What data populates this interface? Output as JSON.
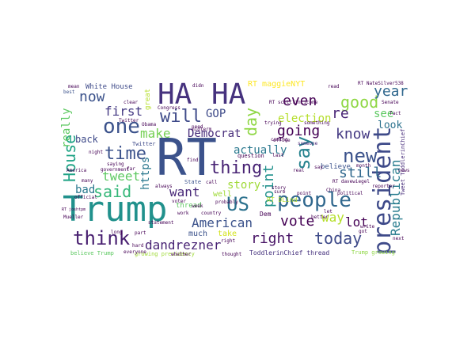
{
  "words": [
    {
      "text": "RT",
      "color": "#3b528b",
      "vertical": false
    },
    {
      "text": "Trump",
      "color": "#21918c",
      "vertical": false
    },
    {
      "text": "HA",
      "color": "#46327e",
      "vertical": false
    },
    {
      "text": "HA",
      "color": "#46327e",
      "vertical": false
    },
    {
      "text": "president",
      "color": "#3e4a89",
      "vertical": true
    },
    {
      "text": "people",
      "color": "#31688e",
      "vertical": false
    },
    {
      "text": "one",
      "color": "#3b528b",
      "vertical": false
    },
    {
      "text": "think",
      "color": "#481f70",
      "vertical": false
    },
    {
      "text": "new",
      "color": "#3b528b",
      "vertical": false
    },
    {
      "text": "US",
      "color": "#2c728e",
      "vertical": false
    },
    {
      "text": "say",
      "color": "#26828e",
      "vertical": true
    },
    {
      "text": "thing",
      "color": "#482374",
      "vertical": false
    },
    {
      "text": "House",
      "color": "#20a386",
      "vertical": true
    },
    {
      "text": "time",
      "color": "#3b528b",
      "vertical": false
    },
    {
      "text": "said",
      "color": "#35b779",
      "vertical": false
    },
    {
      "text": "today",
      "color": "#3e4a89",
      "vertical": false
    },
    {
      "text": "will",
      "color": "#3e4a89",
      "vertical": false
    },
    {
      "text": "good",
      "color": "#8fd744",
      "vertical": false
    },
    {
      "text": "day",
      "color": "#8fd744",
      "vertical": true
    },
    {
      "text": "vote",
      "color": "#440154",
      "vertical": false
    },
    {
      "text": "year",
      "color": "#31688e",
      "vertical": false
    },
    {
      "text": "know",
      "color": "#443983",
      "vertical": false
    },
    {
      "text": "make",
      "color": "#75d054",
      "vertical": false
    },
    {
      "text": "now",
      "color": "#3b528b",
      "vertical": false
    },
    {
      "text": "first",
      "color": "#443983",
      "vertical": false
    },
    {
      "text": "tweet",
      "color": "#5ec962",
      "vertical": false
    },
    {
      "text": "still",
      "color": "#31688e",
      "vertical": false
    },
    {
      "text": "even",
      "color": "#440154",
      "vertical": false
    },
    {
      "text": "going",
      "color": "#440154",
      "vertical": false
    },
    {
      "text": "right",
      "color": "#471365",
      "vertical": false
    },
    {
      "text": "want",
      "color": "#482878",
      "vertical": false
    },
    {
      "text": "American",
      "color": "#3b528b",
      "vertical": false
    },
    {
      "text": "dandrezner",
      "color": "#482374",
      "vertical": false
    },
    {
      "text": "Republican",
      "color": "#287c8e",
      "vertical": true
    },
    {
      "text": "point",
      "color": "#21918c",
      "vertical": true
    },
    {
      "text": "way",
      "color": "#b5de2b",
      "vertical": false
    },
    {
      "text": "lot",
      "color": "#440154",
      "vertical": false
    },
    {
      "text": "re",
      "color": "#482475",
      "vertical": false
    },
    {
      "text": "see",
      "color": "#5ec962",
      "vertical": false
    },
    {
      "text": "election",
      "color": "#b5de2b",
      "vertical": false
    },
    {
      "text": "actually",
      "color": "#2a788e",
      "vertical": false
    },
    {
      "text": "Democrat",
      "color": "#472d7b",
      "vertical": false
    },
    {
      "text": "GOP",
      "color": "#3e4a89",
      "vertical": false
    },
    {
      "text": "bad",
      "color": "#2a788e",
      "vertical": false
    },
    {
      "text": "back",
      "color": "#3e4a89",
      "vertical": false
    },
    {
      "text": "really",
      "color": "#5ec962",
      "vertical": true
    },
    {
      "text": "story",
      "color": "#a0da39",
      "vertical": false
    },
    {
      "text": "look",
      "color": "#2c728e",
      "vertical": false
    },
    {
      "text": "https",
      "color": "#2a788e",
      "vertical": true
    },
    {
      "text": "RT maggieNYT",
      "color": "#fde725",
      "vertical": false
    },
    {
      "text": "White House",
      "color": "#3e4a89",
      "vertical": false
    },
    {
      "text": "ToddlerinChief thread",
      "color": "#46327e",
      "vertical": false
    },
    {
      "text": "thread",
      "color": "#5ec962",
      "vertical": false
    },
    {
      "text": "much",
      "color": "#3b528b",
      "vertical": false
    },
    {
      "text": "take",
      "color": "#d2e21b",
      "vertical": false
    },
    {
      "text": "RT DLind",
      "color": "#b5de2b",
      "vertical": false
    },
    {
      "text": "believe Trump",
      "color": "#5ec962",
      "vertical": false
    },
    {
      "text": "Trump growing",
      "color": "#8fd744",
      "vertical": false
    },
    {
      "text": "growing presidency",
      "color": "#a0da39",
      "vertical": false
    },
    {
      "text": "Tweet ToddlerinChief",
      "color": "#472d7b",
      "vertical": true
    },
    {
      "text": "Dem",
      "color": "#440154",
      "vertical": false
    },
    {
      "text": "believe",
      "color": "#3b528b",
      "vertical": false
    },
    {
      "text": "Twitter",
      "color": "#3e4a89",
      "vertical": false
    },
    {
      "text": "mean",
      "color": "#440154",
      "vertical": false
    },
    {
      "text": "best",
      "color": "#3b528b",
      "vertical": false
    },
    {
      "text": "need",
      "color": "#440154",
      "vertical": false
    },
    {
      "text": "question",
      "color": "#440154",
      "vertical": false
    },
    {
      "text": "last",
      "color": "#440154",
      "vertical": false
    },
    {
      "text": "something",
      "color": "#440154",
      "vertical": false
    },
    {
      "text": "someone",
      "color": "#482878",
      "vertical": false
    },
    {
      "text": "trying",
      "color": "#440154",
      "vertical": false
    },
    {
      "text": "coming",
      "color": "#440154",
      "vertical": false
    },
    {
      "text": "Senate",
      "color": "#440154",
      "vertical": false
    },
    {
      "text": "Congress",
      "color": "#440154",
      "vertical": false
    },
    {
      "text": "clear",
      "color": "#440154",
      "vertical": false
    },
    {
      "text": "China",
      "color": "#440154",
      "vertical": false
    },
    {
      "text": "call",
      "color": "#440154",
      "vertical": false
    },
    {
      "text": "State",
      "color": "#3b528b",
      "vertical": false
    },
    {
      "text": "well",
      "color": "#a0da39",
      "vertical": false
    },
    {
      "text": "work",
      "color": "#440154",
      "vertical": false
    },
    {
      "text": "week",
      "color": "#440154",
      "vertical": false
    },
    {
      "text": "country",
      "color": "#440154",
      "vertical": false
    },
    {
      "text": "part",
      "color": "#440154",
      "vertical": false
    },
    {
      "text": "long",
      "color": "#440154",
      "vertical": false
    },
    {
      "text": "hard",
      "color": "#440154",
      "vertical": false
    },
    {
      "text": "got",
      "color": "#440154",
      "vertical": false
    },
    {
      "text": "great",
      "color": "#b5de2b",
      "vertical": true
    },
    {
      "text": "official",
      "color": "#440154",
      "vertical": false
    },
    {
      "text": "political",
      "color": "#440154",
      "vertical": false
    },
    {
      "text": "point",
      "color": "#440154",
      "vertical": false
    },
    {
      "text": "read",
      "color": "#440154",
      "vertical": false
    },
    {
      "text": "story",
      "color": "#440154",
      "vertical": false
    },
    {
      "text": "RT NateSilver538",
      "color": "#440154",
      "vertical": false
    },
    {
      "text": "RT scottlincicome",
      "color": "#440154",
      "vertical": false
    },
    {
      "text": "Obama",
      "color": "#440154",
      "vertical": false
    },
    {
      "text": "night",
      "color": "#440154",
      "vertical": false
    },
    {
      "text": "let",
      "color": "#440154",
      "vertical": false
    },
    {
      "text": "month",
      "color": "#440154",
      "vertical": false
    },
    {
      "text": "better",
      "color": "#440154",
      "vertical": false
    },
    {
      "text": "thought",
      "color": "#440154",
      "vertical": false
    },
    {
      "text": "Twitter",
      "color": "#440154",
      "vertical": false
    },
    {
      "text": "statement",
      "color": "#440154",
      "vertical": false
    },
    {
      "text": "everyone",
      "color": "#440154",
      "vertical": false
    },
    {
      "text": "right",
      "color": "#440154",
      "vertical": false
    },
    {
      "text": "reporter",
      "color": "#440154",
      "vertical": false
    },
    {
      "text": "RT davewiegel",
      "color": "#440154",
      "vertical": false
    },
    {
      "text": "real",
      "color": "#440154",
      "vertical": false
    },
    {
      "text": "voter",
      "color": "#440154",
      "vertical": false
    },
    {
      "text": "midterm",
      "color": "#440154",
      "vertical": false
    },
    {
      "text": "far",
      "color": "#440154",
      "vertical": false
    },
    {
      "text": "saying",
      "color": "#440154",
      "vertical": false
    },
    {
      "text": "government",
      "color": "#440154",
      "vertical": false
    },
    {
      "text": "America",
      "color": "#440154",
      "vertical": false
    },
    {
      "text": "find",
      "color": "#440154",
      "vertical": false
    },
    {
      "text": "RT joshtpm",
      "color": "#440154",
      "vertical": false
    },
    {
      "text": "probably",
      "color": "#440154",
      "vertical": false
    },
    {
      "text": "always",
      "color": "#440154",
      "vertical": false
    },
    {
      "text": "many",
      "color": "#440154",
      "vertical": false
    },
    {
      "text": "sure",
      "color": "#440154",
      "vertical": false
    },
    {
      "text": "office",
      "color": "#440154",
      "vertical": false
    },
    {
      "text": "Mueller",
      "color": "#440154",
      "vertical": false
    },
    {
      "text": "write",
      "color": "#440154",
      "vertical": false
    },
    {
      "text": "next",
      "color": "#440154",
      "vertical": false
    },
    {
      "text": "news",
      "color": "#440154",
      "vertical": false
    },
    {
      "text": "whether",
      "color": "#440154",
      "vertical": false
    },
    {
      "text": "didn",
      "color": "#440154",
      "vertical": false
    },
    {
      "text": "fact",
      "color": "#440154",
      "vertical": false
    },
    {
      "text": "say",
      "color": "#440154",
      "vertical": false
    }
  ]
}
